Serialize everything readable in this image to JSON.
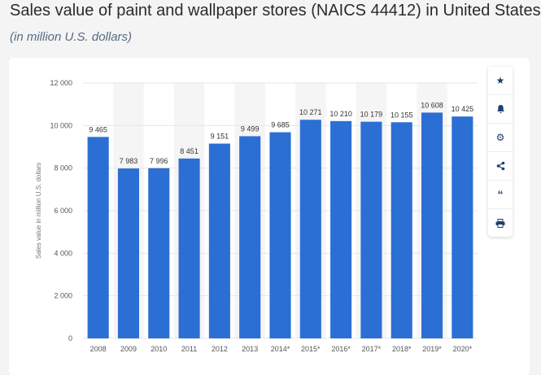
{
  "page": {
    "title": "Sales value of paint and wallpaper stores (NAICS 44412) in United States",
    "subtitle": "(in million U.S. dollars)"
  },
  "toolbar": {
    "icons": [
      "star-icon",
      "bell-icon",
      "gear-icon",
      "share-icon",
      "quote-icon",
      "print-icon"
    ]
  },
  "colors": {
    "bar": "#2b6fd4",
    "band": "#f5f5f5",
    "grid": "#e6e6e6"
  },
  "chart_data": {
    "type": "bar",
    "title": "",
    "xlabel": "",
    "ylabel": "Sales value in million U.S. dollars",
    "ylim": [
      0,
      12000
    ],
    "yticks": [
      0,
      2000,
      4000,
      6000,
      8000,
      10000,
      12000
    ],
    "ytick_labels": [
      "0",
      "2 000",
      "4 000",
      "6 000",
      "8 000",
      "10 000",
      "12 000"
    ],
    "categories": [
      "2008",
      "2009",
      "2010",
      "2011",
      "2012",
      "2013",
      "2014*",
      "2015*",
      "2016*",
      "2017*",
      "2018*",
      "2019*",
      "2020*"
    ],
    "values": [
      9465,
      7983,
      7996,
      8451,
      9151,
      9499,
      9685,
      10271,
      10210,
      10179,
      10155,
      10608,
      10425
    ],
    "value_labels": [
      "9 465",
      "7 983",
      "7 996",
      "8 451",
      "9 151",
      "9 499",
      "9 685",
      "10 271",
      "10 210",
      "10 179",
      "10 155",
      "10 608",
      "10 425"
    ],
    "grid": true,
    "legend": "none"
  }
}
